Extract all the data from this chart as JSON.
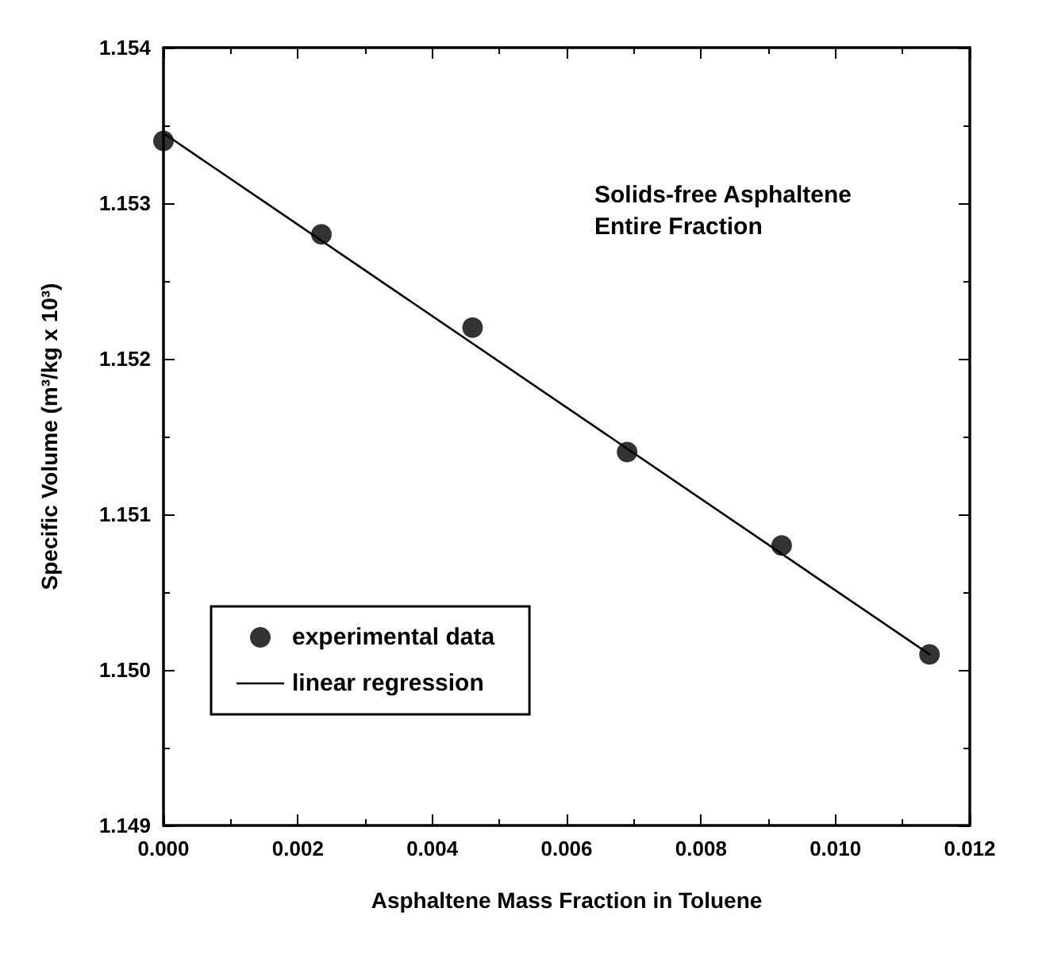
{
  "chart_data": {
    "type": "scatter",
    "xlabel": "Asphaltene Mass Fraction in Toluene",
    "ylabel": "Specific Volume (m³/kg x 10³)",
    "annotations": [
      "Solids-free Asphaltene\nEntire Fraction"
    ],
    "series": [
      {
        "name": "experimental data",
        "color": "#000000",
        "marker": "circle",
        "x": [
          0,
          0.00235,
          0.0046,
          0.0069,
          0.0092,
          0.0114
        ],
        "values": [
          1.1534,
          1.1528,
          1.1522,
          1.1514,
          1.1508,
          1.1501
        ]
      },
      {
        "name": "linear regression",
        "type": "line",
        "color": "#000000",
        "marker": "none",
        "line_style": "solid",
        "x": [
          0,
          0.0114
        ],
        "values": [
          1.15345,
          1.1501
        ]
      }
    ],
    "xlim": [
      0,
      0.012
    ],
    "xticks": [
      {
        "value": 0,
        "label": "0.000"
      },
      {
        "value": 0.002,
        "label": "0.002"
      },
      {
        "value": 0.004,
        "label": "0.004"
      },
      {
        "value": 0.006,
        "label": "0.006"
      },
      {
        "value": 0.008,
        "label": "0.008"
      },
      {
        "value": 0.01,
        "label": "0.010"
      },
      {
        "value": 0.012,
        "label": "0.012"
      }
    ],
    "ylim": [
      1.149,
      1.154
    ],
    "yticks": [
      1.149,
      {
        "value": 1.15,
        "label": "1.150"
      },
      1.151,
      1.152,
      1.153,
      1.154
    ],
    "grid": false,
    "legend": "bottom left"
  }
}
